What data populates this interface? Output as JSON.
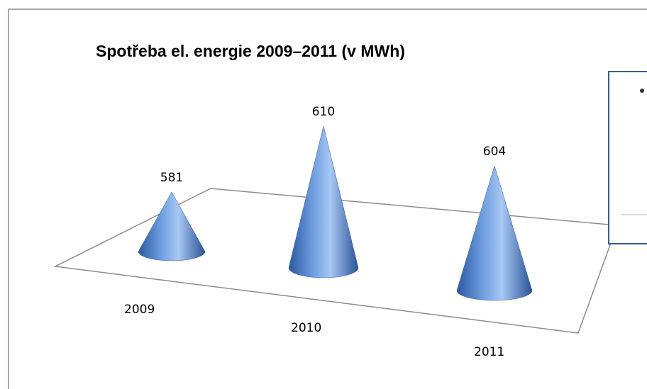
{
  "chart_data": {
    "type": "cone",
    "title": "Spotřeba el. energie 2009–2011 (v MWh)",
    "categories": [
      "2009",
      "2010",
      "2011"
    ],
    "values": [
      581,
      610,
      604
    ],
    "color": "#4f7fc8",
    "ylim": [
      560,
      620
    ]
  }
}
